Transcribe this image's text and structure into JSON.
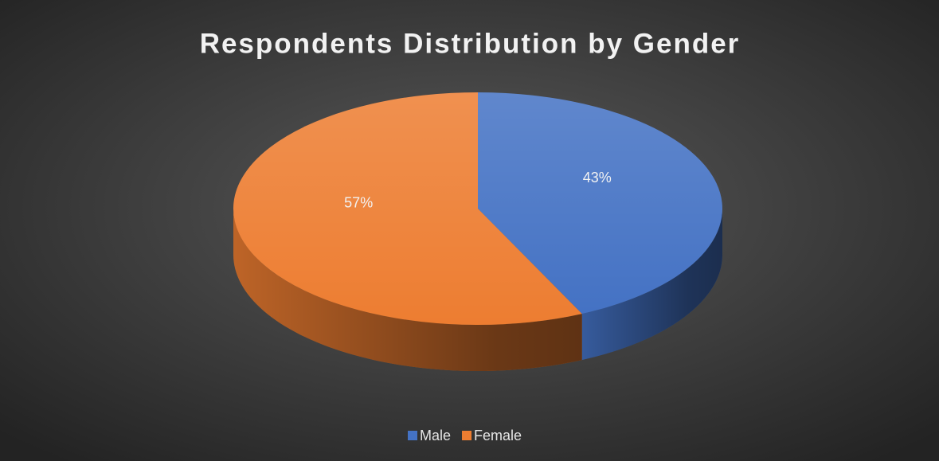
{
  "chart_data": {
    "type": "pie",
    "title": "Respondents Distribution by Gender",
    "categories": [
      "Male",
      "Female"
    ],
    "values": [
      43,
      57
    ],
    "value_labels": [
      "43%",
      "57%"
    ],
    "colors": [
      "#4472c4",
      "#ed7d31"
    ],
    "legend": "bottom"
  }
}
